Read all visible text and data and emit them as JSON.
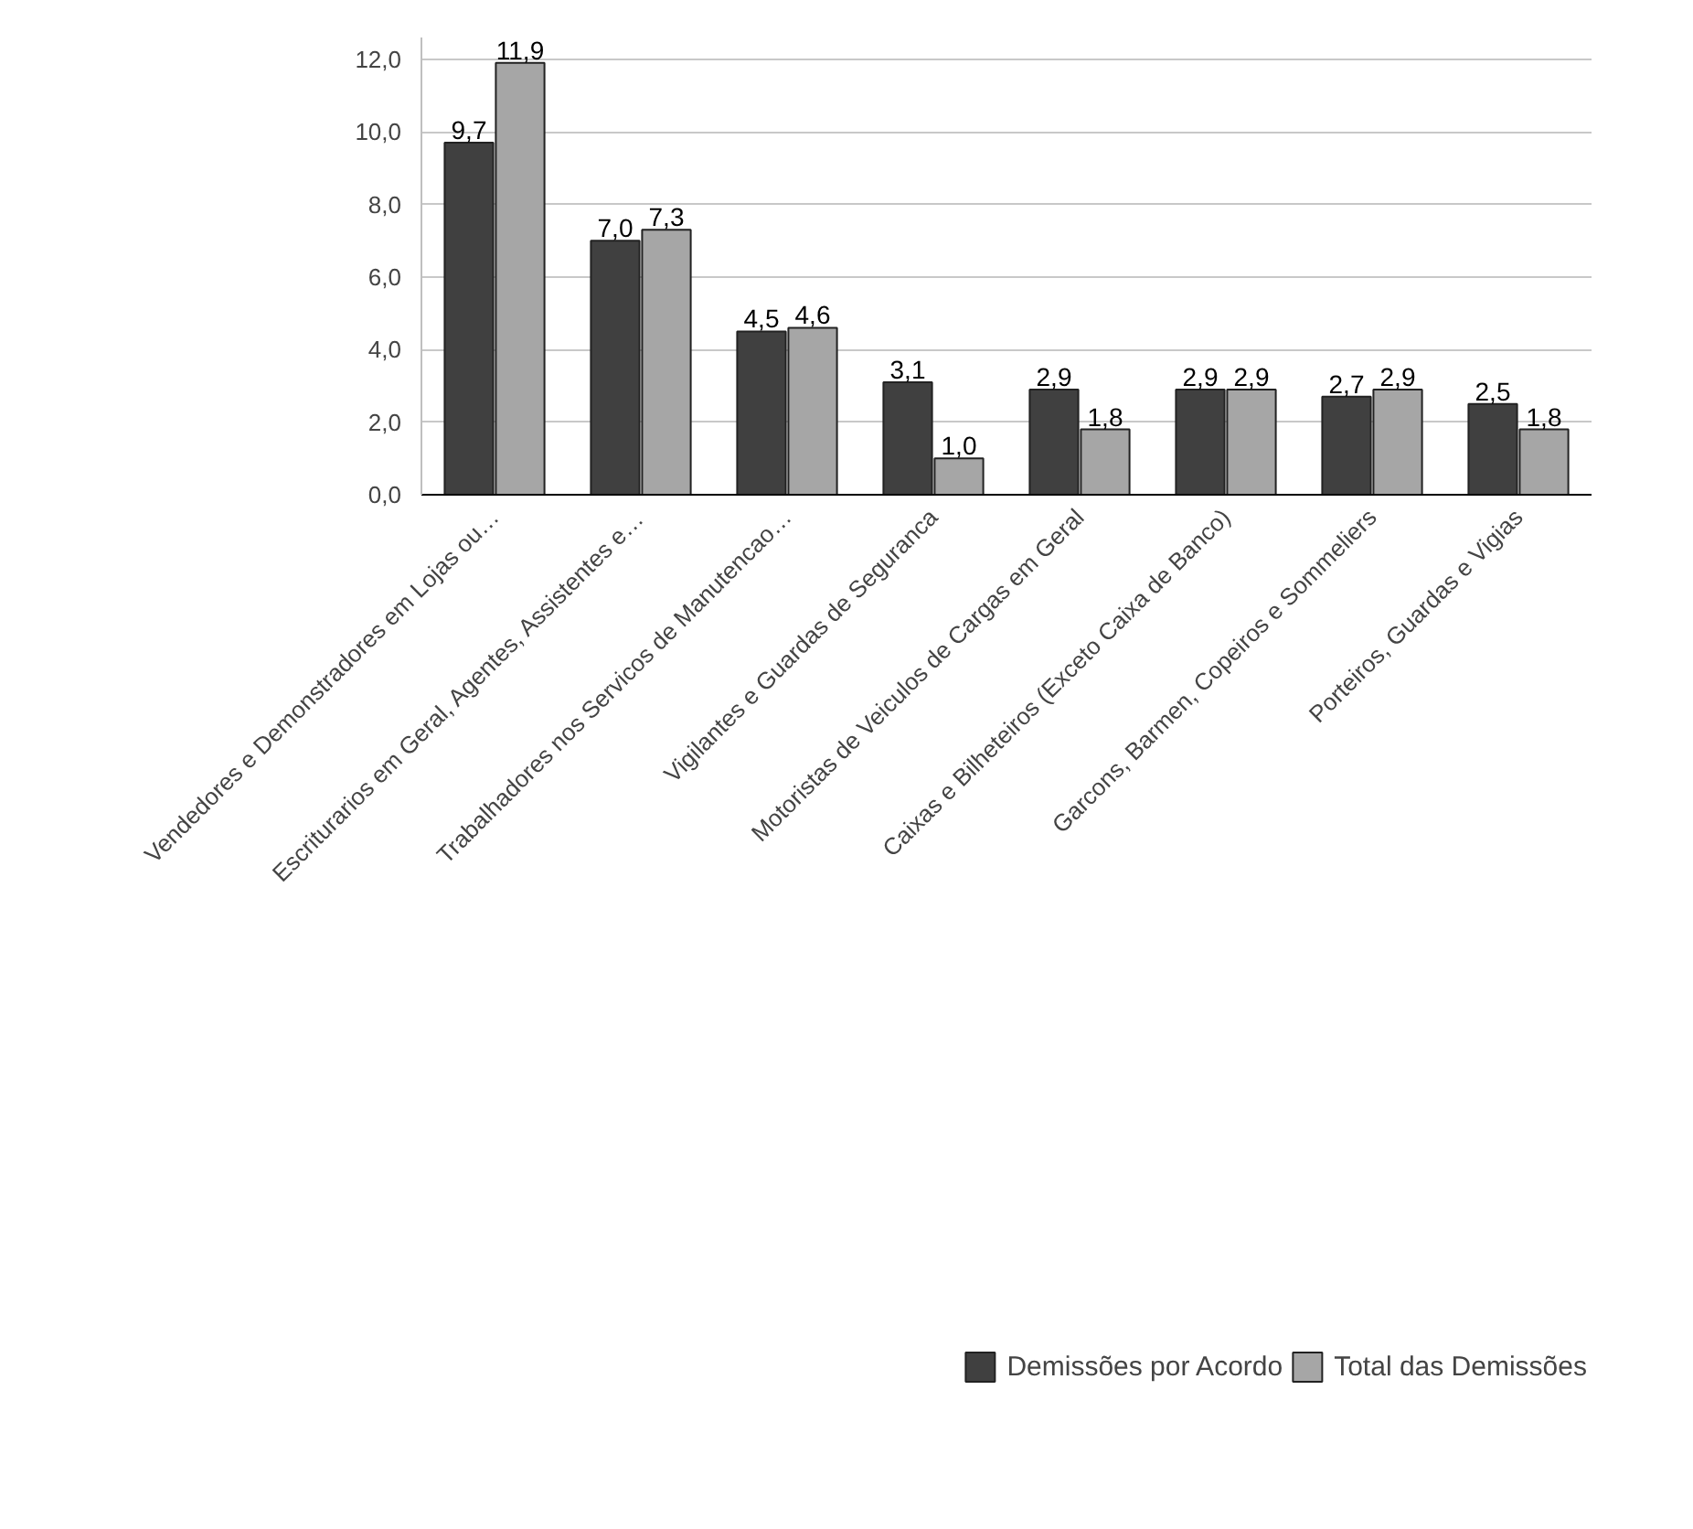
{
  "chart_data": {
    "type": "bar",
    "categories": [
      "Vendedores e Demonstradores em Lojas ou…",
      "Escriturarios em Geral, Agentes, Assistentes e…",
      "Trabalhadores nos Servicos de Manutencao…",
      "Vigilantes e Guardas de Seguranca",
      "Motoristas de Veiculos de Cargas em Geral",
      "Caixas e Bilheteiros (Exceto Caixa de Banco)",
      "Garcons, Barmen, Copeiros e Sommeliers",
      "Porteiros, Guardas e Vigias"
    ],
    "series": [
      {
        "name": "Demissões por Acordo",
        "color": "#404040",
        "values": [
          9.7,
          7.0,
          4.5,
          3.1,
          2.9,
          2.9,
          2.7,
          2.5
        ],
        "value_labels": [
          "9,7",
          "7,0",
          "4,5",
          "3,1",
          "2,9",
          "2,9",
          "2,7",
          "2,5"
        ]
      },
      {
        "name": "Total das Demissões",
        "color": "#a6a6a6",
        "values": [
          11.9,
          7.3,
          4.6,
          1.0,
          1.8,
          2.9,
          2.9,
          1.8
        ],
        "value_labels": [
          "11,9",
          "7,3",
          "4,6",
          "1,0",
          "1,8",
          "2,9",
          "2,9",
          "1,8"
        ]
      }
    ],
    "ylim": [
      0,
      12.6
    ],
    "yticks": [
      {
        "value": 0,
        "label": "0,0"
      },
      {
        "value": 2,
        "label": "2,0"
      },
      {
        "value": 4,
        "label": "4,0"
      },
      {
        "value": 6,
        "label": "6,0"
      },
      {
        "value": 8,
        "label": "8,0"
      },
      {
        "value": 10,
        "label": "10,0"
      },
      {
        "value": 12,
        "label": "12,0"
      }
    ],
    "grid": "y",
    "legend": "bottom"
  }
}
